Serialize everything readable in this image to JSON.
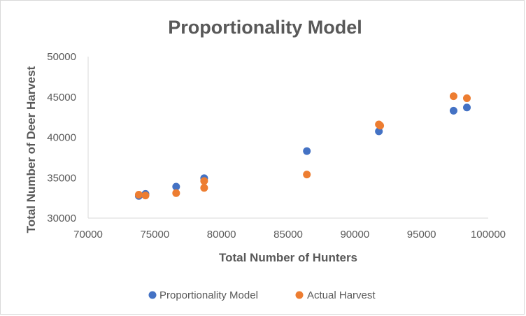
{
  "chart_data": {
    "type": "scatter",
    "title": "Proportionality Model",
    "xlabel": "Total Number of Hunters",
    "ylabel": "Total Number of Deer Harvest",
    "xlim": [
      70000,
      100000
    ],
    "ylim": [
      30000,
      50000
    ],
    "x_ticks": [
      "70000",
      "75000",
      "80000",
      "85000",
      "90000",
      "95000",
      "100000"
    ],
    "y_ticks": [
      "30000",
      "35000",
      "40000",
      "45000",
      "50000"
    ],
    "grid": false,
    "legend": "bottom",
    "series": [
      {
        "name": "Proportionality Model",
        "color": "#4472C4",
        "points": [
          [
            73800,
            32750
          ],
          [
            74300,
            33000
          ],
          [
            76600,
            33900
          ],
          [
            78700,
            34950
          ],
          [
            86400,
            38300
          ],
          [
            91800,
            40750
          ],
          [
            97400,
            43300
          ],
          [
            98400,
            43700
          ]
        ]
      },
      {
        "name": "Actual Harvest",
        "color": "#ED7D31",
        "points": [
          [
            73800,
            32900
          ],
          [
            74300,
            32800
          ],
          [
            76600,
            33100
          ],
          [
            78700,
            33750
          ],
          [
            78700,
            34600
          ],
          [
            86400,
            35400
          ],
          [
            91800,
            41600
          ],
          [
            91900,
            41450
          ],
          [
            97400,
            45100
          ],
          [
            98400,
            44850
          ]
        ]
      }
    ]
  }
}
